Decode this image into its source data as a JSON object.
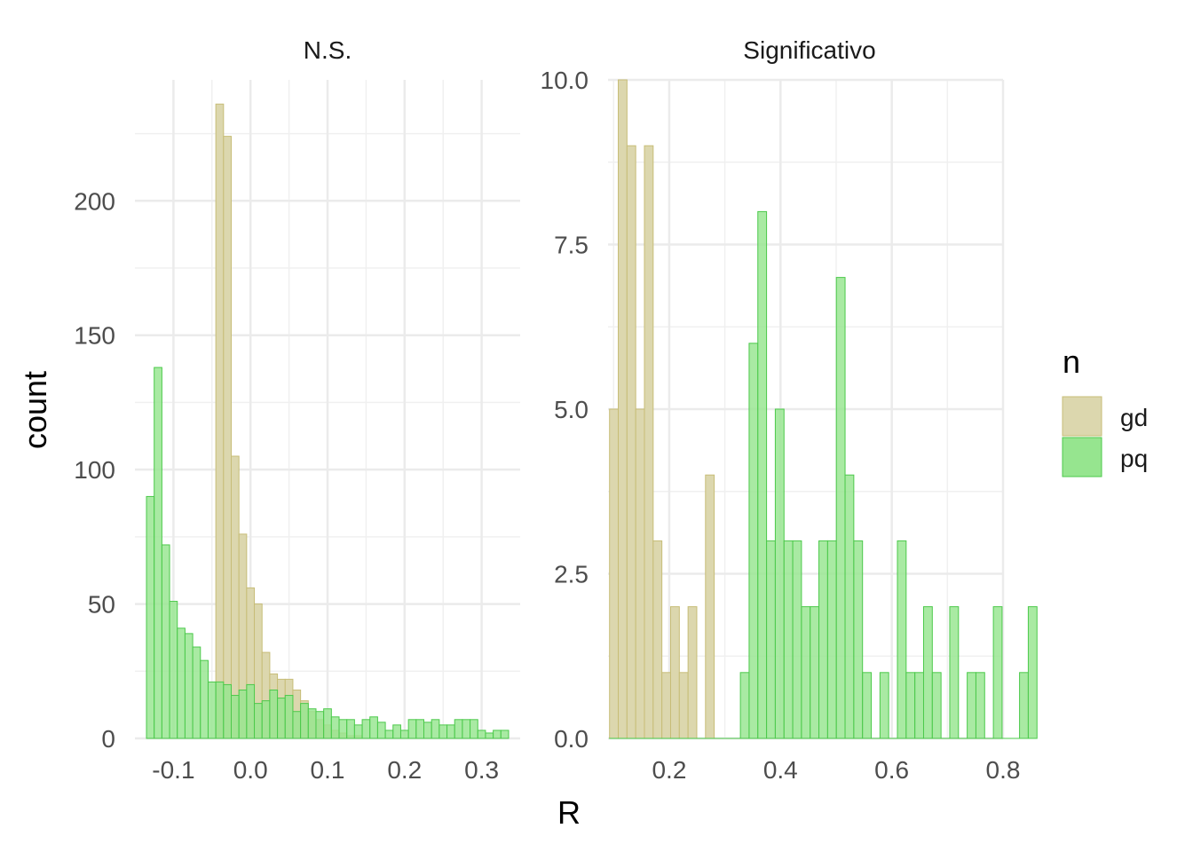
{
  "chart_data": {
    "type": "bar",
    "subtype": "overlaid histogram, faceted",
    "xlabel": "R",
    "ylabel": "count",
    "legend": {
      "title": "n",
      "position": "right",
      "entries": [
        {
          "label": "gd",
          "fill": "#dcd7ae",
          "stroke": "#c7bd77"
        },
        {
          "label": "pq",
          "fill": "#96e58f",
          "stroke": "#4cc94b"
        }
      ]
    },
    "grid": true,
    "facets": [
      {
        "title": "N.S.",
        "xlim": [
          -0.15,
          0.35
        ],
        "ylim": [
          0,
          245
        ],
        "xticks": [
          -0.1,
          0.0,
          0.1,
          0.2,
          0.3
        ],
        "xtick_labels": [
          "-0.1",
          "0.0",
          "0.1",
          "0.2",
          "0.3"
        ],
        "yticks": [
          0,
          50,
          100,
          150,
          200
        ],
        "ytick_labels": [
          "0",
          "50",
          "100",
          "150",
          "200"
        ],
        "series": [
          {
            "name": "gd",
            "bin_start": -0.135,
            "bin_width": 0.01,
            "counts": [
              0,
              0,
              0,
              0,
              0,
              0,
              0,
              0,
              0,
              236,
              224,
              105,
              76,
              56,
              50,
              32,
              24,
              22,
              22,
              18,
              14,
              10,
              7,
              5,
              3,
              2,
              1,
              1,
              0,
              0,
              0,
              0,
              0,
              0,
              0,
              0,
              0,
              0,
              0,
              0,
              0,
              0,
              0,
              0,
              0,
              0,
              0
            ]
          },
          {
            "name": "pq",
            "bin_start": -0.135,
            "bin_width": 0.01,
            "counts": [
              90,
              138,
              72,
              51,
              41,
              39,
              34,
              29,
              21,
              21,
              20,
              16,
              18,
              20,
              13,
              14,
              18,
              15,
              16,
              10,
              13,
              11,
              10,
              11,
              8,
              7,
              7,
              5,
              7,
              8,
              6,
              3,
              5,
              3,
              7,
              7,
              6,
              7,
              5,
              5,
              7,
              7,
              7,
              3,
              2,
              3,
              3
            ]
          }
        ]
      },
      {
        "title": "Significativo",
        "xlim": [
          0.09,
          0.8
        ],
        "ylim": [
          0,
          10
        ],
        "xticks": [
          0.2,
          0.4,
          0.6,
          0.8
        ],
        "xtick_labels": [
          "0.2",
          "0.4",
          "0.6",
          "0.8"
        ],
        "yticks": [
          0.0,
          2.5,
          5.0,
          7.5,
          10.0
        ],
        "ytick_labels": [
          "0.0",
          "2.5",
          "5.0",
          "7.5",
          "10.0"
        ],
        "series": [
          {
            "name": "gd",
            "bin_start": 0.0927,
            "bin_width": 0.01568,
            "counts": [
              5,
              10,
              9,
              5,
              9,
              3,
              1,
              2,
              1,
              2,
              0,
              4,
              0,
              0,
              0,
              0,
              0,
              0,
              0,
              0,
              0,
              0,
              0,
              0,
              0,
              0,
              0,
              0,
              0,
              0,
              0,
              0,
              0,
              0,
              0,
              0,
              0,
              0,
              0,
              0,
              0,
              0,
              0,
              0
            ]
          },
          {
            "name": "pq",
            "bin_start": 0.0927,
            "bin_width": 0.01568,
            "counts": [
              0,
              0,
              0,
              0,
              0,
              0,
              0,
              0,
              0,
              0,
              0,
              0,
              0,
              0,
              0,
              1,
              6,
              8,
              3,
              5,
              3,
              3,
              2,
              2,
              3,
              3,
              7,
              4,
              3,
              1,
              0,
              1,
              0,
              3,
              1,
              1,
              2,
              1,
              0,
              2,
              0,
              1,
              1,
              0,
              2,
              0,
              0,
              1,
              2
            ]
          }
        ]
      }
    ]
  }
}
